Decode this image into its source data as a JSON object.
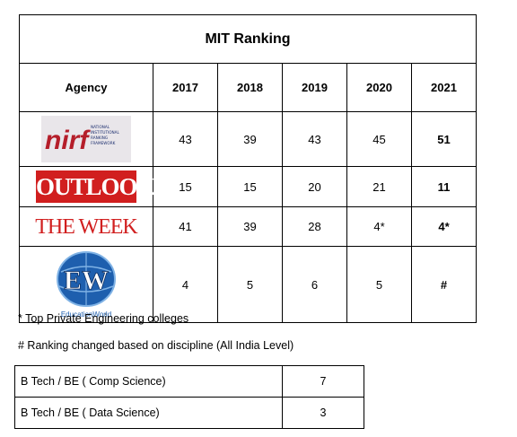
{
  "title": "MIT Ranking",
  "header": {
    "agency": "Agency",
    "years": [
      "2017",
      "2018",
      "2019",
      "2020",
      "2021"
    ]
  },
  "rows": [
    {
      "logo": "nirf-logo",
      "logo_text": "nirf",
      "logo_small_text": "NATIONAL INSTITUTIONAL RANKING FRAMEWORK",
      "values": [
        "43",
        "39",
        "43",
        "45",
        "51"
      ]
    },
    {
      "logo": "outlook-logo",
      "logo_text": "OUTLOOK",
      "values": [
        "15",
        "15",
        "20",
        "21",
        "11"
      ]
    },
    {
      "logo": "the-week-logo",
      "logo_text": "THE WEEK",
      "values": [
        "41",
        "39",
        "28",
        "4*",
        "4*"
      ]
    },
    {
      "logo": "educationworld-logo",
      "logo_text": "EW",
      "logo_small_text": "EducationWorld",
      "values": [
        "4",
        "5",
        "6",
        "5",
        "#"
      ]
    }
  ],
  "notes": {
    "asterisk": "* Top Private Engineering colleges",
    "hash": "# Ranking changed based on discipline (All India Level)"
  },
  "discipline": [
    {
      "label": "B Tech / BE ( Comp Science)",
      "value": "7"
    },
    {
      "label": "B Tech / BE ( Data Science)",
      "value": "3"
    }
  ],
  "colors": {
    "outlook_red": "#d11f1f",
    "nirf_red": "#b51e2a",
    "nirf_blue": "#1d2f6f",
    "ew_blue": "#1e5fae"
  }
}
